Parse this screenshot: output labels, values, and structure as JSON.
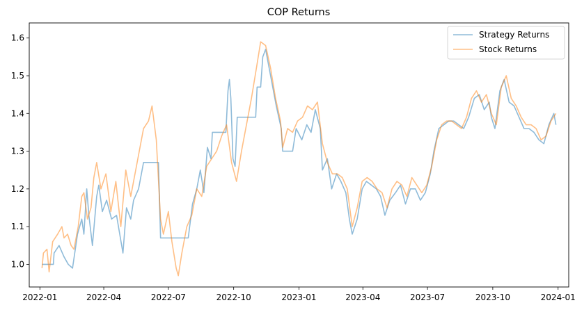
{
  "chart_data": {
    "type": "line",
    "title": "COP Returns",
    "xlabel": "",
    "ylabel": "",
    "x_range": [
      "2021-12-17",
      "2024-01-16"
    ],
    "ylim": [
      0.94,
      1.64
    ],
    "x_ticks": [
      {
        "date": "2022-01-01",
        "label": "2022-01"
      },
      {
        "date": "2022-04-01",
        "label": "2022-04"
      },
      {
        "date": "2022-07-01",
        "label": "2022-07"
      },
      {
        "date": "2022-10-01",
        "label": "2022-10"
      },
      {
        "date": "2023-01-01",
        "label": "2023-01"
      },
      {
        "date": "2023-04-01",
        "label": "2023-04"
      },
      {
        "date": "2023-07-01",
        "label": "2023-07"
      },
      {
        "date": "2023-10-01",
        "label": "2023-10"
      },
      {
        "date": "2024-01-01",
        "label": "2024-01"
      }
    ],
    "y_ticks": [
      1.0,
      1.1,
      1.2,
      1.3,
      1.4,
      1.5,
      1.6
    ],
    "y_tick_labels": [
      "1.0",
      "1.1",
      "1.2",
      "1.3",
      "1.4",
      "1.5",
      "1.6"
    ],
    "grid": false,
    "legend_position": "top-right",
    "series": [
      {
        "name": "Strategy Returns",
        "color": "#1f77b4",
        "points": [
          [
            "2022-01-04",
            1.0
          ],
          [
            "2022-01-20",
            1.0
          ],
          [
            "2022-01-21",
            1.03
          ],
          [
            "2022-01-28",
            1.05
          ],
          [
            "2022-02-04",
            1.02
          ],
          [
            "2022-02-10",
            1.0
          ],
          [
            "2022-02-16",
            0.99
          ],
          [
            "2022-02-23",
            1.08
          ],
          [
            "2022-03-01",
            1.12
          ],
          [
            "2022-03-04",
            1.08
          ],
          [
            "2022-03-08",
            1.2
          ],
          [
            "2022-03-11",
            1.13
          ],
          [
            "2022-03-16",
            1.05
          ],
          [
            "2022-03-22",
            1.18
          ],
          [
            "2022-03-25",
            1.21
          ],
          [
            "2022-03-30",
            1.14
          ],
          [
            "2022-04-05",
            1.17
          ],
          [
            "2022-04-12",
            1.12
          ],
          [
            "2022-04-19",
            1.13
          ],
          [
            "2022-04-28",
            1.03
          ],
          [
            "2022-05-03",
            1.15
          ],
          [
            "2022-05-09",
            1.12
          ],
          [
            "2022-05-13",
            1.17
          ],
          [
            "2022-05-20",
            1.2
          ],
          [
            "2022-05-27",
            1.27
          ],
          [
            "2022-06-17",
            1.27
          ],
          [
            "2022-06-20",
            1.07
          ],
          [
            "2022-07-29",
            1.07
          ],
          [
            "2022-08-04",
            1.16
          ],
          [
            "2022-08-10",
            1.2
          ],
          [
            "2022-08-15",
            1.25
          ],
          [
            "2022-08-20",
            1.19
          ],
          [
            "2022-08-25",
            1.31
          ],
          [
            "2022-08-30",
            1.28
          ],
          [
            "2022-09-01",
            1.35
          ],
          [
            "2022-09-20",
            1.35
          ],
          [
            "2022-09-23",
            1.46
          ],
          [
            "2022-09-25",
            1.49
          ],
          [
            "2022-09-27",
            1.44
          ],
          [
            "2022-09-30",
            1.28
          ],
          [
            "2022-10-03",
            1.26
          ],
          [
            "2022-10-06",
            1.39
          ],
          [
            "2022-10-14",
            1.39
          ],
          [
            "2022-10-21",
            1.39
          ],
          [
            "2022-10-28",
            1.39
          ],
          [
            "2022-11-01",
            1.39
          ],
          [
            "2022-11-03",
            1.47
          ],
          [
            "2022-11-08",
            1.47
          ],
          [
            "2022-11-11",
            1.55
          ],
          [
            "2022-11-15",
            1.57
          ],
          [
            "2022-11-22",
            1.5
          ],
          [
            "2022-11-30",
            1.42
          ],
          [
            "2022-12-07",
            1.36
          ],
          [
            "2022-12-09",
            1.3
          ],
          [
            "2022-12-23",
            1.3
          ],
          [
            "2022-12-28",
            1.36
          ],
          [
            "2023-01-05",
            1.33
          ],
          [
            "2023-01-12",
            1.37
          ],
          [
            "2023-01-18",
            1.35
          ],
          [
            "2023-01-24",
            1.41
          ],
          [
            "2023-01-31",
            1.36
          ],
          [
            "2023-02-03",
            1.25
          ],
          [
            "2023-02-10",
            1.28
          ],
          [
            "2023-02-16",
            1.2
          ],
          [
            "2023-02-23",
            1.24
          ],
          [
            "2023-03-01",
            1.22
          ],
          [
            "2023-03-08",
            1.19
          ],
          [
            "2023-03-13",
            1.12
          ],
          [
            "2023-03-17",
            1.08
          ],
          [
            "2023-03-24",
            1.12
          ],
          [
            "2023-03-31",
            1.2
          ],
          [
            "2023-04-06",
            1.22
          ],
          [
            "2023-04-13",
            1.21
          ],
          [
            "2023-04-20",
            1.2
          ],
          [
            "2023-04-26",
            1.18
          ],
          [
            "2023-05-02",
            1.13
          ],
          [
            "2023-05-09",
            1.17
          ],
          [
            "2023-05-17",
            1.19
          ],
          [
            "2023-05-24",
            1.21
          ],
          [
            "2023-05-31",
            1.16
          ],
          [
            "2023-06-07",
            1.2
          ],
          [
            "2023-06-14",
            1.2
          ],
          [
            "2023-06-21",
            1.17
          ],
          [
            "2023-06-28",
            1.19
          ],
          [
            "2023-07-05",
            1.24
          ],
          [
            "2023-07-10",
            1.3
          ],
          [
            "2023-07-17",
            1.36
          ],
          [
            "2023-07-24",
            1.37
          ],
          [
            "2023-07-31",
            1.38
          ],
          [
            "2023-08-07",
            1.38
          ],
          [
            "2023-08-14",
            1.37
          ],
          [
            "2023-08-21",
            1.36
          ],
          [
            "2023-08-28",
            1.39
          ],
          [
            "2023-09-05",
            1.44
          ],
          [
            "2023-09-12",
            1.45
          ],
          [
            "2023-09-19",
            1.41
          ],
          [
            "2023-09-26",
            1.43
          ],
          [
            "2023-09-29",
            1.39
          ],
          [
            "2023-10-04",
            1.36
          ],
          [
            "2023-10-11",
            1.46
          ],
          [
            "2023-10-17",
            1.49
          ],
          [
            "2023-10-24",
            1.43
          ],
          [
            "2023-10-31",
            1.42
          ],
          [
            "2023-11-07",
            1.39
          ],
          [
            "2023-11-14",
            1.36
          ],
          [
            "2023-11-21",
            1.36
          ],
          [
            "2023-11-28",
            1.35
          ],
          [
            "2023-12-05",
            1.33
          ],
          [
            "2023-12-12",
            1.32
          ],
          [
            "2023-12-19",
            1.37
          ],
          [
            "2023-12-26",
            1.4
          ],
          [
            "2023-12-29",
            1.37
          ]
        ]
      },
      {
        "name": "Stock Returns",
        "color": "#ff7f0e",
        "points": [
          [
            "2022-01-04",
            0.99
          ],
          [
            "2022-01-06",
            1.03
          ],
          [
            "2022-01-11",
            1.04
          ],
          [
            "2022-01-14",
            0.98
          ],
          [
            "2022-01-19",
            1.06
          ],
          [
            "2022-01-26",
            1.08
          ],
          [
            "2022-02-01",
            1.1
          ],
          [
            "2022-02-04",
            1.07
          ],
          [
            "2022-02-09",
            1.08
          ],
          [
            "2022-02-14",
            1.05
          ],
          [
            "2022-02-18",
            1.04
          ],
          [
            "2022-02-24",
            1.1
          ],
          [
            "2022-03-01",
            1.18
          ],
          [
            "2022-03-04",
            1.19
          ],
          [
            "2022-03-09",
            1.12
          ],
          [
            "2022-03-14",
            1.15
          ],
          [
            "2022-03-18",
            1.23
          ],
          [
            "2022-03-22",
            1.27
          ],
          [
            "2022-03-28",
            1.2
          ],
          [
            "2022-04-04",
            1.24
          ],
          [
            "2022-04-11",
            1.14
          ],
          [
            "2022-04-18",
            1.22
          ],
          [
            "2022-04-25",
            1.1
          ],
          [
            "2022-05-02",
            1.25
          ],
          [
            "2022-05-09",
            1.18
          ],
          [
            "2022-05-13",
            1.22
          ],
          [
            "2022-05-20",
            1.29
          ],
          [
            "2022-05-27",
            1.36
          ],
          [
            "2022-06-03",
            1.38
          ],
          [
            "2022-06-08",
            1.42
          ],
          [
            "2022-06-14",
            1.33
          ],
          [
            "2022-06-20",
            1.12
          ],
          [
            "2022-06-24",
            1.08
          ],
          [
            "2022-07-01",
            1.14
          ],
          [
            "2022-07-06",
            1.06
          ],
          [
            "2022-07-12",
            0.99
          ],
          [
            "2022-07-15",
            0.97
          ],
          [
            "2022-07-20",
            1.03
          ],
          [
            "2022-07-27",
            1.1
          ],
          [
            "2022-08-03",
            1.13
          ],
          [
            "2022-08-10",
            1.2
          ],
          [
            "2022-08-17",
            1.18
          ],
          [
            "2022-08-24",
            1.26
          ],
          [
            "2022-08-31",
            1.28
          ],
          [
            "2022-09-07",
            1.3
          ],
          [
            "2022-09-14",
            1.34
          ],
          [
            "2022-09-21",
            1.37
          ],
          [
            "2022-09-28",
            1.27
          ],
          [
            "2022-10-05",
            1.22
          ],
          [
            "2022-10-12",
            1.3
          ],
          [
            "2022-10-19",
            1.37
          ],
          [
            "2022-10-26",
            1.44
          ],
          [
            "2022-11-02",
            1.52
          ],
          [
            "2022-11-08",
            1.59
          ],
          [
            "2022-11-15",
            1.58
          ],
          [
            "2022-11-22",
            1.52
          ],
          [
            "2022-11-29",
            1.44
          ],
          [
            "2022-12-06",
            1.38
          ],
          [
            "2022-12-09",
            1.31
          ],
          [
            "2022-12-16",
            1.36
          ],
          [
            "2022-12-23",
            1.35
          ],
          [
            "2022-12-30",
            1.38
          ],
          [
            "2023-01-06",
            1.39
          ],
          [
            "2023-01-13",
            1.42
          ],
          [
            "2023-01-20",
            1.41
          ],
          [
            "2023-01-27",
            1.43
          ],
          [
            "2023-02-03",
            1.32
          ],
          [
            "2023-02-10",
            1.27
          ],
          [
            "2023-02-17",
            1.24
          ],
          [
            "2023-02-24",
            1.24
          ],
          [
            "2023-03-03",
            1.23
          ],
          [
            "2023-03-10",
            1.2
          ],
          [
            "2023-03-17",
            1.1
          ],
          [
            "2023-03-24",
            1.15
          ],
          [
            "2023-03-31",
            1.22
          ],
          [
            "2023-04-07",
            1.23
          ],
          [
            "2023-04-14",
            1.22
          ],
          [
            "2023-04-21",
            1.2
          ],
          [
            "2023-04-28",
            1.19
          ],
          [
            "2023-05-05",
            1.15
          ],
          [
            "2023-05-12",
            1.2
          ],
          [
            "2023-05-19",
            1.22
          ],
          [
            "2023-05-26",
            1.21
          ],
          [
            "2023-06-02",
            1.18
          ],
          [
            "2023-06-09",
            1.23
          ],
          [
            "2023-06-16",
            1.21
          ],
          [
            "2023-06-23",
            1.19
          ],
          [
            "2023-06-30",
            1.21
          ],
          [
            "2023-07-07",
            1.26
          ],
          [
            "2023-07-14",
            1.33
          ],
          [
            "2023-07-21",
            1.37
          ],
          [
            "2023-07-28",
            1.38
          ],
          [
            "2023-08-04",
            1.38
          ],
          [
            "2023-08-11",
            1.37
          ],
          [
            "2023-08-18",
            1.36
          ],
          [
            "2023-08-25",
            1.39
          ],
          [
            "2023-09-01",
            1.44
          ],
          [
            "2023-09-08",
            1.46
          ],
          [
            "2023-09-15",
            1.43
          ],
          [
            "2023-09-22",
            1.45
          ],
          [
            "2023-09-29",
            1.4
          ],
          [
            "2023-10-06",
            1.37
          ],
          [
            "2023-10-13",
            1.47
          ],
          [
            "2023-10-20",
            1.5
          ],
          [
            "2023-10-27",
            1.44
          ],
          [
            "2023-11-03",
            1.42
          ],
          [
            "2023-11-10",
            1.39
          ],
          [
            "2023-11-17",
            1.37
          ],
          [
            "2023-11-24",
            1.37
          ],
          [
            "2023-12-01",
            1.36
          ],
          [
            "2023-12-08",
            1.33
          ],
          [
            "2023-12-15",
            1.34
          ],
          [
            "2023-12-22",
            1.38
          ],
          [
            "2023-12-29",
            1.4
          ]
        ]
      }
    ]
  }
}
